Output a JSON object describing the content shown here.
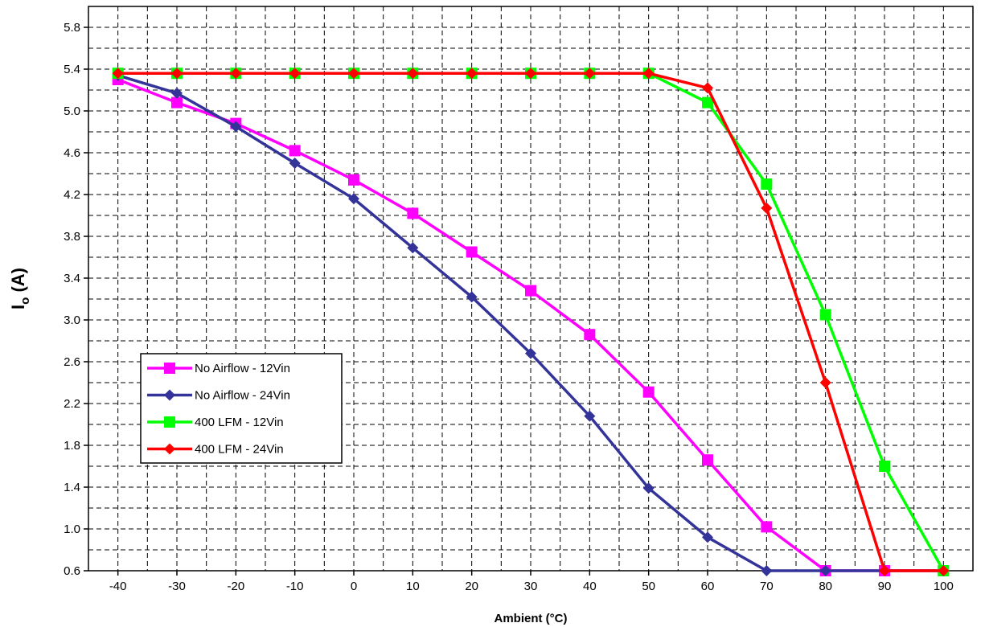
{
  "chart_data": {
    "type": "line",
    "xlabel": "Ambient (°C)",
    "ylabel_main": "I",
    "ylabel_sub": "o",
    "ylabel_unit": " (A)",
    "x": [
      -40,
      -30,
      -20,
      -10,
      0,
      10,
      20,
      30,
      40,
      50,
      60,
      70,
      80,
      90,
      100
    ],
    "x_tick_labels": [
      "-40",
      "-30",
      "-20",
      "-10",
      "0",
      "10",
      "20",
      "30",
      "40",
      "50",
      "60",
      "70",
      "80",
      "90",
      "100"
    ],
    "y_tick_labels": [
      "0.6",
      "1.0",
      "1.4",
      "1.8",
      "2.2",
      "2.6",
      "3.0",
      "3.4",
      "3.8",
      "4.2",
      "4.6",
      "5.0",
      "5.4",
      "5.8"
    ],
    "xlim": [
      -45,
      105
    ],
    "ylim": [
      0.6,
      6.0
    ],
    "grid": true,
    "legend_position": "lower-left",
    "series": [
      {
        "name": "No Airflow - 12Vin",
        "color": "#ff00ff",
        "marker": "square",
        "points": [
          [
            -40,
            5.3
          ],
          [
            -30,
            5.08
          ],
          [
            -20,
            4.88
          ],
          [
            -10,
            4.62
          ],
          [
            0,
            4.34
          ],
          [
            10,
            4.02
          ],
          [
            20,
            3.65
          ],
          [
            30,
            3.28
          ],
          [
            40,
            2.86
          ],
          [
            50,
            2.31
          ],
          [
            60,
            1.66
          ],
          [
            70,
            1.02
          ],
          [
            80,
            0.6
          ],
          [
            90,
            0.6
          ],
          [
            100,
            0.6
          ]
        ]
      },
      {
        "name": "No Airflow - 24Vin",
        "color": "#333399",
        "marker": "diamond",
        "points": [
          [
            -40,
            5.34
          ],
          [
            -30,
            5.17
          ],
          [
            -20,
            4.85
          ],
          [
            -10,
            4.5
          ],
          [
            0,
            4.16
          ],
          [
            10,
            3.69
          ],
          [
            20,
            3.22
          ],
          [
            30,
            2.68
          ],
          [
            40,
            2.08
          ],
          [
            50,
            1.39
          ],
          [
            60,
            0.92
          ],
          [
            70,
            0.6
          ],
          [
            80,
            0.6
          ],
          [
            90,
            0.6
          ],
          [
            100,
            0.6
          ]
        ]
      },
      {
        "name": "400 LFM - 12Vin",
        "color": "#00ff00",
        "marker": "square",
        "points": [
          [
            -40,
            5.36
          ],
          [
            -30,
            5.36
          ],
          [
            -20,
            5.36
          ],
          [
            -10,
            5.36
          ],
          [
            0,
            5.36
          ],
          [
            10,
            5.36
          ],
          [
            20,
            5.36
          ],
          [
            30,
            5.36
          ],
          [
            40,
            5.36
          ],
          [
            50,
            5.36
          ],
          [
            60,
            5.08
          ],
          [
            70,
            4.3
          ],
          [
            80,
            3.05
          ],
          [
            90,
            1.6
          ],
          [
            100,
            0.6
          ]
        ]
      },
      {
        "name": "400 LFM - 24Vin",
        "color": "#ff0000",
        "marker": "diamond",
        "points": [
          [
            -40,
            5.36
          ],
          [
            -30,
            5.36
          ],
          [
            -20,
            5.36
          ],
          [
            -10,
            5.36
          ],
          [
            0,
            5.36
          ],
          [
            10,
            5.36
          ],
          [
            20,
            5.36
          ],
          [
            30,
            5.36
          ],
          [
            40,
            5.36
          ],
          [
            50,
            5.36
          ],
          [
            60,
            5.22
          ],
          [
            70,
            4.07
          ],
          [
            80,
            2.4
          ],
          [
            90,
            0.6
          ],
          [
            100,
            0.6
          ]
        ]
      }
    ]
  }
}
